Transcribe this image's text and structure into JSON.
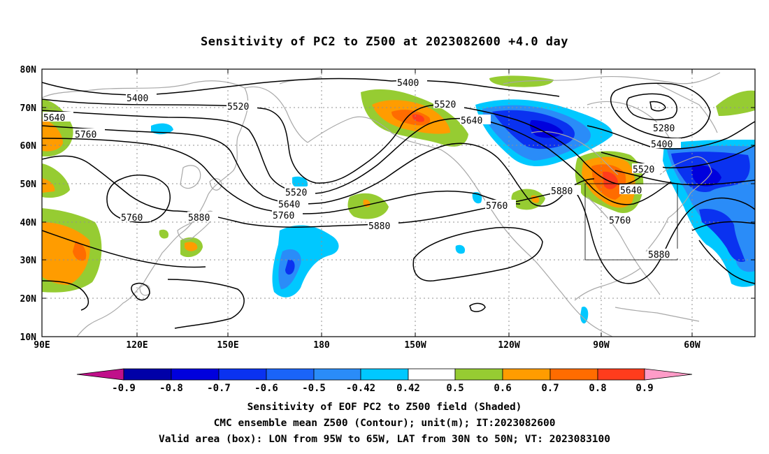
{
  "title": "Sensitivity of PC2 to Z500 at 2023082600 +4.0 day",
  "lat_labels": [
    "80N",
    "70N",
    "60N",
    "50N",
    "40N",
    "30N",
    "20N",
    "10N"
  ],
  "lon_labels": [
    "90E",
    "120E",
    "150E",
    "180",
    "150W",
    "120W",
    "90W",
    "60W"
  ],
  "contour_labels": {
    "c5400a": "5400",
    "c5520a": "5520",
    "c5640a": "5640",
    "c5760a": "5760",
    "c5400b": "5400",
    "c5520b": "5520",
    "c5640b": "5640",
    "c5520c": "5520",
    "c5640c": "5640",
    "c5760c": "5760",
    "c5880a": "5880",
    "c5760d": "5760",
    "c5880b": "5880",
    "c5760e": "5760",
    "c5880c": "5880",
    "c5280": "5280",
    "c5400c": "5400",
    "c5520d": "5520",
    "c5640d": "5640",
    "c5760f": "5760",
    "c5880d": "5880"
  },
  "colorbar": {
    "labels": [
      "-0.9",
      "-0.8",
      "-0.7",
      "-0.6",
      "-0.5",
      "-0.42",
      "0.42",
      "0.5",
      "0.6",
      "0.7",
      "0.8",
      "0.9"
    ],
    "colors": {
      "low_end": "#c0108a",
      "neg9": "#0000a8",
      "neg8": "#0000dd",
      "neg7": "#0a32f0",
      "neg6": "#1a64f8",
      "neg5": "#2a8cf8",
      "neg42": "#00c8ff",
      "white": "#ffffff",
      "pos42": "#96cc32",
      "pos5": "#ff9c00",
      "pos6": "#ff6c00",
      "pos7": "#ff3c1c",
      "pos8": "#ff0000",
      "high_end": "#ff9cc8"
    }
  },
  "captions": {
    "line1": "Sensitivity of EOF PC2 to Z500 field (Shaded)",
    "line2": "CMC ensemble mean Z500 (Contour); unit(m); IT:2023082600",
    "line3": "Valid area (box): LON from 95W to 65W, LAT from 30N to 50N; VT: 2023083100"
  }
}
